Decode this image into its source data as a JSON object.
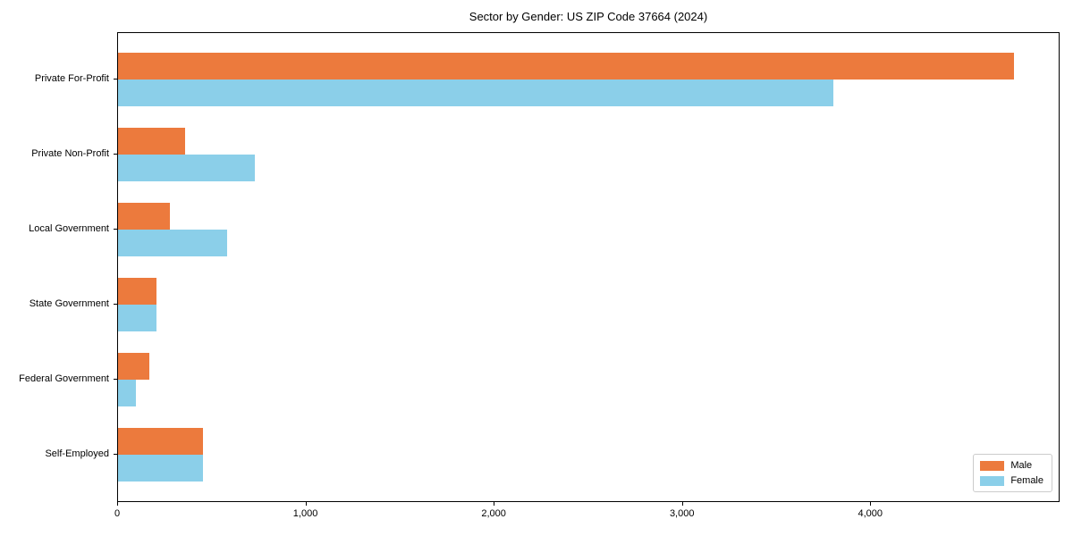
{
  "chart_data": {
    "type": "bar",
    "orientation": "horizontal",
    "title": "Sector by Gender: US ZIP Code 37664 (2024)",
    "xlabel": "",
    "ylabel": "",
    "categories": [
      "Private For-Profit",
      "Private Non-Profit",
      "Local Government",
      "State Government",
      "Federal Government",
      "Self-Employed"
    ],
    "series": [
      {
        "name": "Male",
        "color": "#ec7a3d",
        "values": [
          4758,
          355,
          275,
          205,
          165,
          450
        ]
      },
      {
        "name": "Female",
        "color": "#8bcfe9",
        "values": [
          3800,
          725,
          580,
          205,
          95,
          450
        ]
      }
    ],
    "xlim": [
      0,
      4996
    ],
    "xticks": [
      0,
      1000,
      2000,
      3000,
      4000
    ],
    "xtick_labels": [
      "0",
      "1,000",
      "2,000",
      "3,000",
      "4,000"
    ],
    "grid": false,
    "legend_position": "lower right"
  },
  "legend": {
    "male_label": "Male",
    "female_label": "Female"
  }
}
